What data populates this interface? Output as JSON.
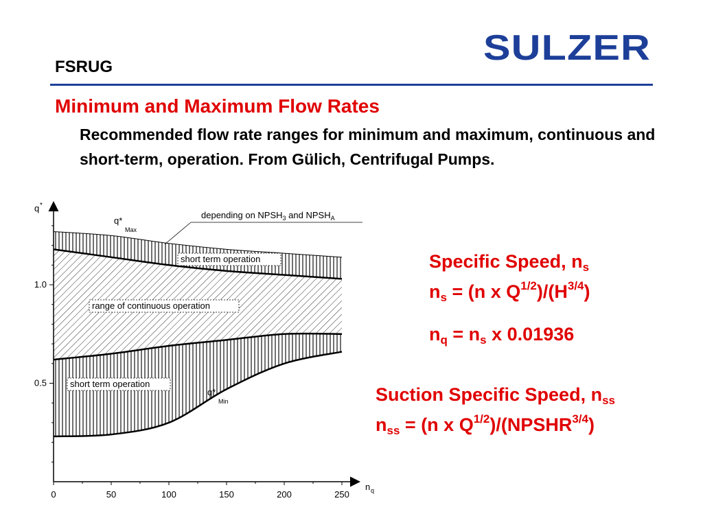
{
  "brand": {
    "name": "SULZER",
    "color": "#1d3f99"
  },
  "header": {
    "title": "FSRUG"
  },
  "slide": {
    "heading": "Minimum and Maximum Flow Rates",
    "subtitle": "Recommended flow rate ranges for minimum and maximum, continuous and short-term, operation. From Gülich, Centrifugal Pumps."
  },
  "formulas": {
    "ns_title": "Specific Speed, n",
    "ns_title_sub": "s",
    "ns_def": {
      "lhs": "n",
      "lhs_sub": "s",
      "eq": " = (n x Q",
      "exp1": "1/2",
      "mid": ")/(H",
      "exp2": "3/4",
      "end": ")"
    },
    "nq_def": {
      "lhs": "n",
      "lhs_sub": "q",
      "eq": " = n",
      "rhs_sub": "s",
      "end": " x 0.01936"
    },
    "nss_title": "Suction Specific Speed, n",
    "nss_title_sub": "ss",
    "nss_def": {
      "lhs": "n",
      "lhs_sub": "ss",
      "eq": " = (n x Q",
      "exp1": "1/2",
      "mid": ")/(NPSHR",
      "exp2": "3/4",
      "end": ")"
    },
    "accent_color": "#e00000"
  },
  "chart_data": {
    "type": "area",
    "title": "",
    "xlabel": "n",
    "xlabel_sub": "q",
    "ylabel": "q",
    "ylabel_sup": "*",
    "xlim": [
      0,
      270
    ],
    "ylim": [
      0,
      1.45
    ],
    "x_ticks": [
      0,
      50,
      100,
      150,
      200,
      250
    ],
    "y_ticks": [
      0.5,
      1.0
    ],
    "y_tick_labels": [
      "0.5",
      "1.0"
    ],
    "series": [
      {
        "name": "q*Max (short-term upper limit)",
        "x": [
          0,
          50,
          100,
          150,
          200,
          250
        ],
        "values": [
          1.27,
          1.25,
          1.21,
          1.18,
          1.16,
          1.14
        ]
      },
      {
        "name": "upper limit of continuous operation",
        "x": [
          0,
          50,
          100,
          150,
          200,
          250
        ],
        "values": [
          1.18,
          1.14,
          1.1,
          1.07,
          1.05,
          1.03
        ]
      },
      {
        "name": "lower limit of continuous operation",
        "x": [
          0,
          50,
          100,
          150,
          200,
          250
        ],
        "values": [
          0.62,
          0.65,
          0.69,
          0.72,
          0.75,
          0.75
        ]
      },
      {
        "name": "q*Min (short-term lower limit)",
        "x": [
          0,
          50,
          100,
          150,
          200,
          250
        ],
        "values": [
          0.23,
          0.24,
          0.3,
          0.47,
          0.6,
          0.66
        ]
      }
    ],
    "annotations": {
      "qmax": "q*",
      "qmax_sub": "Max",
      "qmin": "q*",
      "qmin_sub": "Min",
      "npsh_note": "depending on NPSH",
      "npsh_note_sub1": "3",
      "npsh_note_mid": " and NPSH",
      "npsh_note_sub2": "A",
      "short_term_upper": "short term operation",
      "continuous": "range of continuous operation",
      "short_term_lower": "short term operation"
    }
  }
}
